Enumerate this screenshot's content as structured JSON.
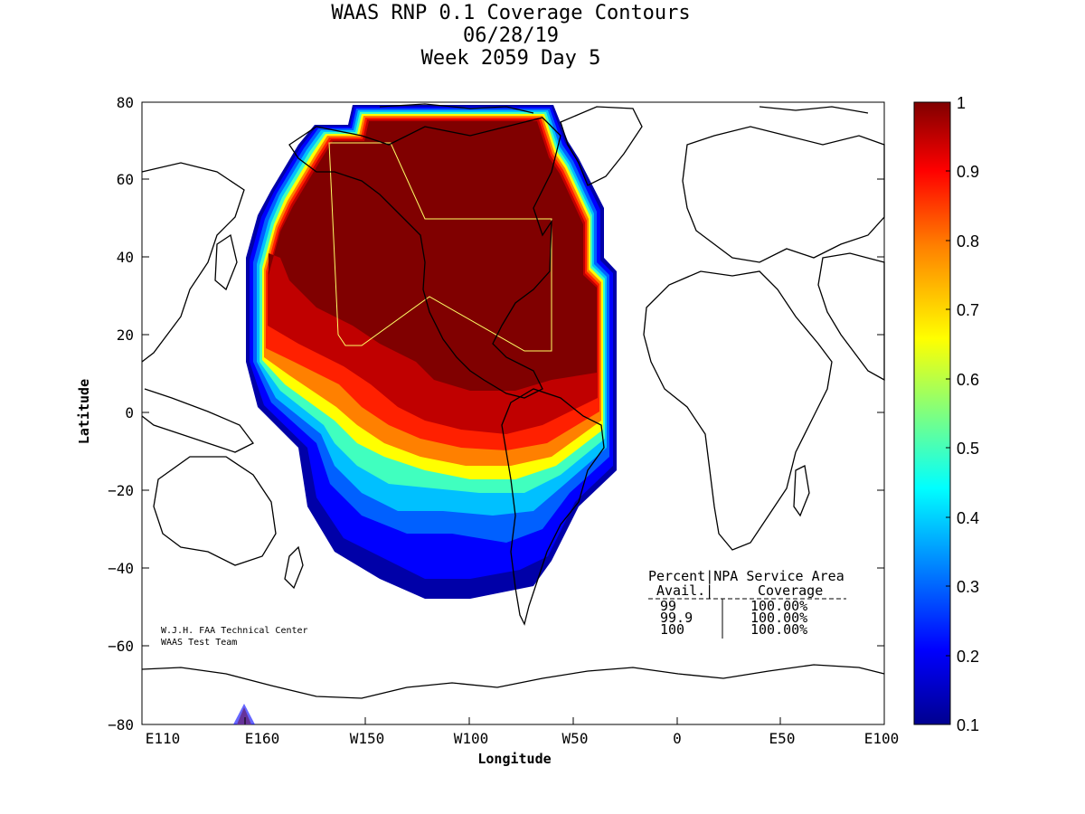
{
  "title": {
    "line1": "WAAS RNP 0.1 Coverage Contours",
    "line2": "06/28/19",
    "line3": "Week 2059 Day 5"
  },
  "axes": {
    "xlabel": "Longitude",
    "ylabel": "Latitude",
    "x_ticks": [
      "E110",
      "E160",
      "W150",
      "W100",
      "W50",
      "0",
      "E50",
      "E100"
    ],
    "y_ticks": [
      "80",
      "60",
      "40",
      "20",
      "0",
      "−20",
      "−40",
      "−60",
      "−80"
    ]
  },
  "colorbar": {
    "ticks": [
      "1",
      "0.9",
      "0.8",
      "0.7",
      "0.6",
      "0.5",
      "0.4",
      "0.3",
      "0.2",
      "0.1"
    ],
    "min": 0.1,
    "max": 1,
    "colormap": "jet"
  },
  "credit": {
    "line1": "W.J.H. FAA Technical Center",
    "line2": "WAAS Test Team"
  },
  "table": {
    "header1": "Percent|NPA Service Area",
    "header2a": "Avail.|",
    "header2b": "Coverage",
    "rows": [
      {
        "avail": "99",
        "coverage": "100.00%"
      },
      {
        "avail": "99.9",
        "coverage": "100.00%"
      },
      {
        "avail": "100",
        "coverage": "100.00%"
      }
    ]
  },
  "colors": {
    "coverage_max": "#800000",
    "service_area_outline": "#ffff66",
    "coastlines": "#000000"
  }
}
